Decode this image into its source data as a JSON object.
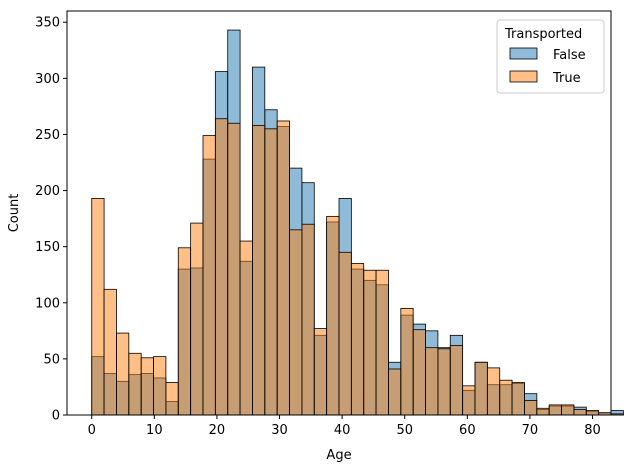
{
  "chart_data": {
    "type": "bar",
    "subtype": "overlaid-histogram",
    "title": "",
    "xlabel": "Age",
    "ylabel": "Count",
    "xlim": [
      -3.95,
      82.95
    ],
    "ylim": [
      0,
      360
    ],
    "xticks": [
      0,
      10,
      20,
      30,
      40,
      50,
      60,
      70,
      80
    ],
    "yticks": [
      0,
      50,
      100,
      150,
      200,
      250,
      300,
      350
    ],
    "grid": false,
    "bin_start": 0,
    "bin_width": 1.975,
    "legend": {
      "title": "Transported",
      "placement": "top-right",
      "entries": [
        "False",
        "True"
      ]
    },
    "series": [
      {
        "name": "False",
        "color": "#1f77b4",
        "fill_opacity": 0.5,
        "values": [
          52,
          37,
          30,
          36,
          37,
          33,
          12,
          130,
          131,
          228,
          306,
          343,
          137,
          310,
          272,
          257,
          220,
          207,
          71,
          172,
          193,
          130,
          120,
          116,
          47,
          89,
          81,
          75,
          60,
          71,
          22,
          47,
          27,
          27,
          28,
          19,
          5,
          8,
          8,
          7,
          3,
          2,
          4
        ]
      },
      {
        "name": "True",
        "color": "#ff7f0e",
        "fill_opacity": 0.5,
        "values": [
          193,
          112,
          73,
          55,
          51,
          52,
          29,
          149,
          171,
          249,
          264,
          260,
          155,
          258,
          255,
          262,
          165,
          170,
          77,
          177,
          145,
          135,
          129,
          129,
          41,
          95,
          76,
          60,
          59,
          62,
          26,
          47,
          42,
          31,
          29,
          13,
          6,
          9,
          9,
          5,
          4,
          2,
          1
        ]
      }
    ]
  }
}
